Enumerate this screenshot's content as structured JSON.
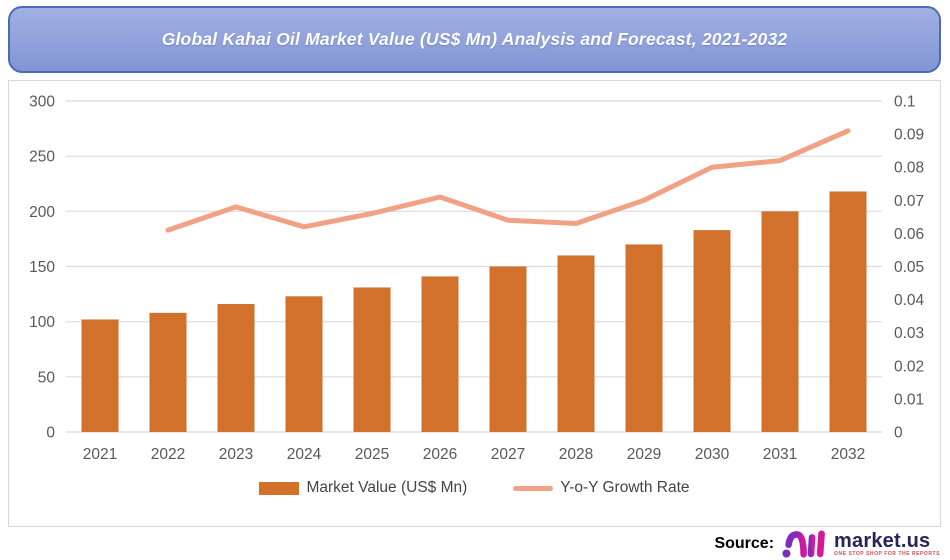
{
  "banner": {
    "title": "Global Kahai Oil Market Value (US$ Mn) Analysis and Forecast, 2021-2032",
    "fill_top": "#a2b0e3",
    "fill_bottom": "#8294d5",
    "border_color": "#4d6bb4",
    "text_color": "#ffffff"
  },
  "chart_data": {
    "type": "bar",
    "subtype": "combo-bar-line-dual-axis",
    "title": "Global Kahai Oil Market Value (US$ Mn) Analysis and Forecast, 2021-2032",
    "categories": [
      "2021",
      "2022",
      "2023",
      "2024",
      "2025",
      "2026",
      "2027",
      "2028",
      "2029",
      "2030",
      "2031",
      "2032"
    ],
    "series": [
      {
        "name": "Market Value (US$ Mn)",
        "type": "bar",
        "axis": "left",
        "color": "#d2712c",
        "values": [
          102,
          108,
          116,
          123,
          131,
          141,
          150,
          160,
          170,
          183,
          200,
          218
        ]
      },
      {
        "name": "Y-o-Y Growth Rate",
        "type": "line",
        "axis": "right",
        "color": "#f2a284",
        "values": [
          null,
          0.061,
          0.068,
          0.062,
          0.066,
          0.071,
          0.064,
          0.063,
          0.07,
          0.08,
          0.082,
          0.091
        ]
      }
    ],
    "left_axis": {
      "min": 0,
      "max": 300,
      "ticks": [
        0,
        50,
        100,
        150,
        200,
        250,
        300
      ],
      "tick_labels": [
        "0",
        "50",
        "100",
        "150",
        "200",
        "250",
        "300"
      ]
    },
    "right_axis": {
      "min": 0,
      "max": 0.1,
      "ticks": [
        0,
        0.01,
        0.02,
        0.03,
        0.04,
        0.05,
        0.06,
        0.07,
        0.08,
        0.09,
        0.1
      ],
      "tick_labels": [
        "0",
        "0.01",
        "0.02",
        "0.03",
        "0.04",
        "0.05",
        "0.06",
        "0.07",
        "0.08",
        "0.09",
        "0.1"
      ]
    },
    "grid": true,
    "grid_color": "#dbdbdb",
    "axis_label_color": "#595959",
    "legend_position": "bottom"
  },
  "legend": {
    "items": [
      {
        "label": "Market Value (US$ Mn)",
        "swatch": "bar",
        "color": "#d2712c"
      },
      {
        "label": "Y-o-Y Growth Rate",
        "swatch": "line",
        "color": "#f2a284"
      }
    ]
  },
  "footer": {
    "source_label": "Source:",
    "brand": "market.us",
    "tagline": "ONE STOP SHOP FOR THE REPORTS",
    "brand_color": "#29235c",
    "tagline_color": "#d94a5a",
    "logo_purple": "#7c2fbf",
    "logo_magenta": "#d6189a"
  }
}
